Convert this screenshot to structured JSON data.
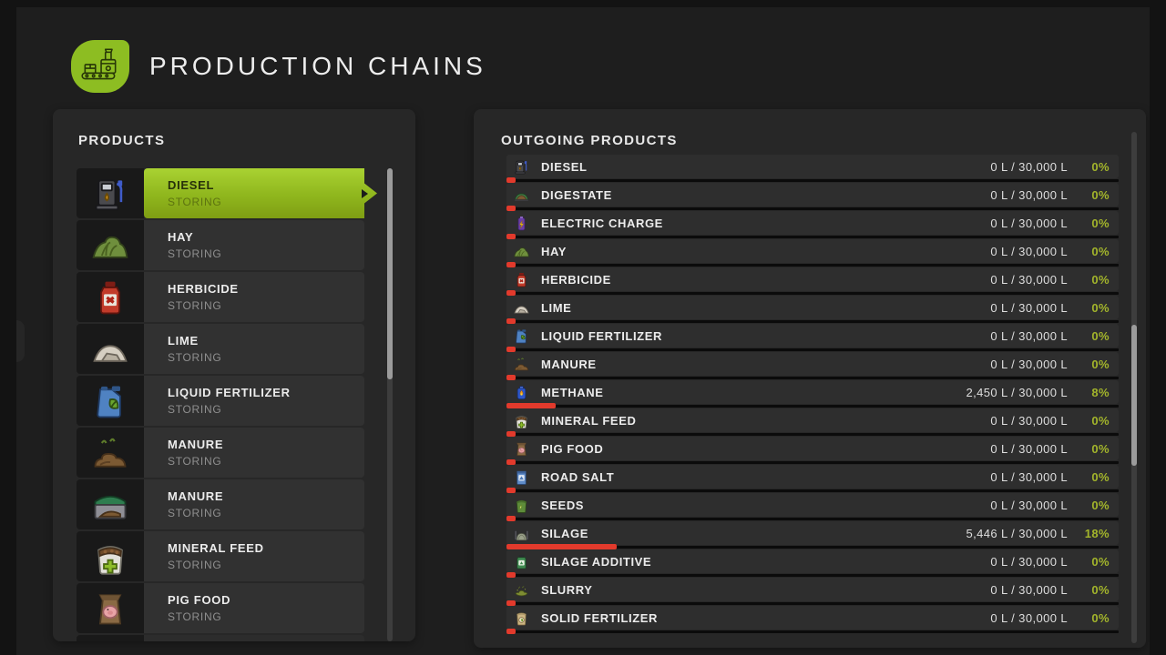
{
  "header": {
    "title": "PRODUCTION CHAINS",
    "logo_icon": "production-chains-logo-icon"
  },
  "colors": {
    "accent_green": "#8dbd22",
    "bar_fill_red": "#e23a2c",
    "percent_text_green": "#a3b52b",
    "selected_item_green_top": "#a9d232",
    "selected_item_green_bottom": "#7f9e13"
  },
  "products_panel": {
    "title": "PRODUCTS",
    "items": [
      {
        "label": "DIESEL",
        "status": "STORING",
        "icon": "fuel-pump",
        "selected": true
      },
      {
        "label": "HAY",
        "status": "STORING",
        "icon": "hay",
        "selected": false
      },
      {
        "label": "HERBICIDE",
        "status": "STORING",
        "icon": "herbicide",
        "selected": false
      },
      {
        "label": "LIME",
        "status": "STORING",
        "icon": "lime",
        "selected": false
      },
      {
        "label": "LIQUID FERTILIZER",
        "status": "STORING",
        "icon": "liquid-fertilizer",
        "selected": false
      },
      {
        "label": "MANURE",
        "status": "STORING",
        "icon": "manure",
        "selected": false
      },
      {
        "label": "MANURE",
        "status": "STORING",
        "icon": "manure-container",
        "selected": false
      },
      {
        "label": "MINERAL FEED",
        "status": "STORING",
        "icon": "mineral-feed",
        "selected": false
      },
      {
        "label": "PIG FOOD",
        "status": "STORING",
        "icon": "pig-food",
        "selected": false
      },
      {
        "label": "",
        "status": "",
        "icon": "road-salt",
        "selected": false,
        "partial": true
      }
    ]
  },
  "outgoing_panel": {
    "title": "OUTGOING PRODUCTS",
    "rows": [
      {
        "label": "DIESEL",
        "amount": "0 L / 30,000 L",
        "percent_label": "0%",
        "percent": 0,
        "icon": "fuel-pump"
      },
      {
        "label": "DIGESTATE",
        "amount": "0 L / 30,000 L",
        "percent_label": "0%",
        "percent": 0,
        "icon": "digestate"
      },
      {
        "label": "ELECTRIC CHARGE",
        "amount": "0 L / 30,000 L",
        "percent_label": "0%",
        "percent": 0,
        "icon": "electric-charge"
      },
      {
        "label": "HAY",
        "amount": "0 L / 30,000 L",
        "percent_label": "0%",
        "percent": 0,
        "icon": "hay"
      },
      {
        "label": "HERBICIDE",
        "amount": "0 L / 30,000 L",
        "percent_label": "0%",
        "percent": 0,
        "icon": "herbicide"
      },
      {
        "label": "LIME",
        "amount": "0 L / 30,000 L",
        "percent_label": "0%",
        "percent": 0,
        "icon": "lime"
      },
      {
        "label": "LIQUID FERTILIZER",
        "amount": "0 L / 30,000 L",
        "percent_label": "0%",
        "percent": 0,
        "icon": "liquid-fertilizer"
      },
      {
        "label": "MANURE",
        "amount": "0 L / 30,000 L",
        "percent_label": "0%",
        "percent": 0,
        "icon": "manure"
      },
      {
        "label": "METHANE",
        "amount": "2,450 L / 30,000 L",
        "percent_label": "8%",
        "percent": 8,
        "icon": "methane"
      },
      {
        "label": "MINERAL FEED",
        "amount": "0 L / 30,000 L",
        "percent_label": "0%",
        "percent": 0,
        "icon": "mineral-feed"
      },
      {
        "label": "PIG FOOD",
        "amount": "0 L / 30,000 L",
        "percent_label": "0%",
        "percent": 0,
        "icon": "pig-food"
      },
      {
        "label": "ROAD SALT",
        "amount": "0 L / 30,000 L",
        "percent_label": "0%",
        "percent": 0,
        "icon": "road-salt"
      },
      {
        "label": "SEEDS",
        "amount": "0 L / 30,000 L",
        "percent_label": "0%",
        "percent": 0,
        "icon": "seeds"
      },
      {
        "label": "SILAGE",
        "amount": "5,446 L / 30,000 L",
        "percent_label": "18%",
        "percent": 18,
        "icon": "silage"
      },
      {
        "label": "SILAGE ADDITIVE",
        "amount": "0 L / 30,000 L",
        "percent_label": "0%",
        "percent": 0,
        "icon": "silage-additive"
      },
      {
        "label": "SLURRY",
        "amount": "0 L / 30,000 L",
        "percent_label": "0%",
        "percent": 0,
        "icon": "slurry"
      },
      {
        "label": "SOLID FERTILIZER",
        "amount": "0 L / 30,000 L",
        "percent_label": "0%",
        "percent": 0,
        "icon": "solid-fertilizer"
      }
    ]
  }
}
